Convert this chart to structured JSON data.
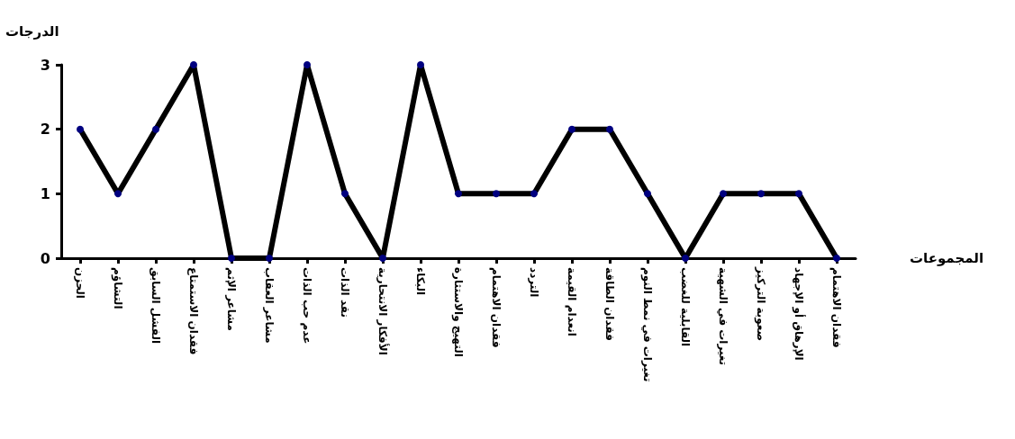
{
  "chart_data": {
    "type": "line",
    "xlabel": "المجموعات",
    "ylabel": "الدرجات",
    "categories": [
      "الحزن",
      "التشاؤم",
      "الفشل السابق",
      "فقدان الاستمتاع",
      "مشاعر الإثم",
      "مشاعر العقاب",
      "عدم حب الذات",
      "نقد الذات",
      "الأفكار الانتحارية",
      "البكاء",
      "التهيج والاستثارة",
      "فقدان الاهتمام",
      "التردد",
      "انعدام القيمة",
      "فقدان الطاقة",
      "تغيرات في نمط النوم",
      "القابلية للغضب",
      "تغيرات في الشهية",
      "صعوبة التركيز",
      "الإرهاق أو الإجهاد",
      "فقدان الاهتمام"
    ],
    "series": [
      {
        "color": "#000000",
        "values": [
          2,
          1,
          2,
          3,
          0,
          0,
          3,
          1,
          0,
          3,
          1,
          1,
          1,
          2,
          2,
          1,
          0,
          1,
          1,
          1,
          0
        ]
      }
    ],
    "ylim": [
      0,
      3
    ],
    "yticks": [
      0,
      1,
      2,
      3
    ],
    "grid": false,
    "marker": "circle",
    "line_style": "solid"
  }
}
